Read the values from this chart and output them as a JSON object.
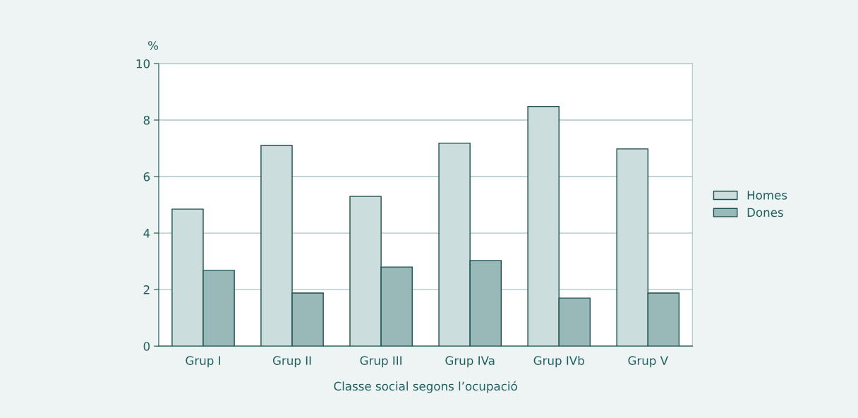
{
  "chart_data": {
    "type": "bar",
    "ylabel": "%",
    "xlabel": "Classe social segons l’ocupació",
    "categories": [
      "Grup I",
      "Grup II",
      "Grup III",
      "Grup IVa",
      "Grup IVb",
      "Grup V"
    ],
    "series": [
      {
        "name": "Homes",
        "color": "#ccdddd",
        "values": [
          4.85,
          7.1,
          5.3,
          7.18,
          8.48,
          6.98
        ]
      },
      {
        "name": "Dones",
        "color": "#99b8b8",
        "values": [
          2.68,
          1.88,
          2.8,
          3.03,
          1.7,
          1.88
        ]
      }
    ],
    "ylim": [
      0,
      10
    ],
    "yticks": [
      0,
      2,
      4,
      6,
      8,
      10
    ],
    "grid": "y",
    "legend": "right"
  }
}
